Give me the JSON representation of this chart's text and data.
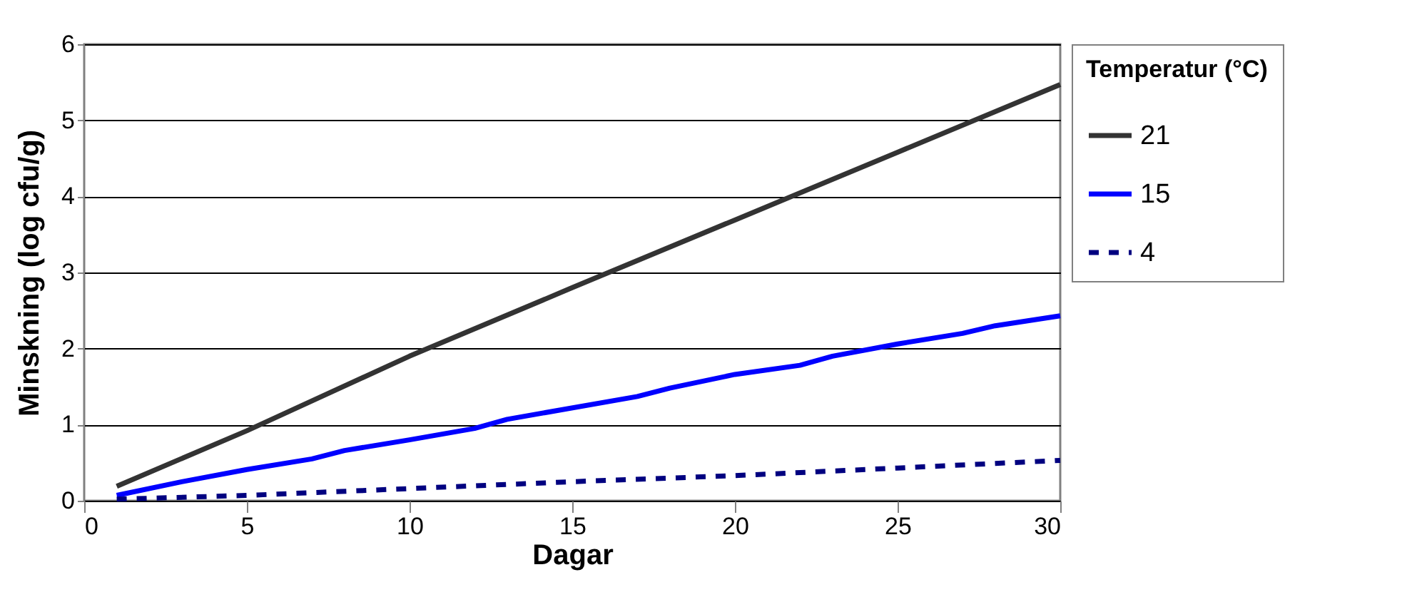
{
  "chart_data": {
    "type": "line",
    "xlabel": "Dagar",
    "ylabel": "Minskning (log cfu/g)",
    "legend_title": "Temperatur (°C)",
    "xlim": [
      0,
      30
    ],
    "xticks": [
      0,
      5,
      10,
      15,
      20,
      25,
      30
    ],
    "ylim": [
      0,
      6
    ],
    "yticks": [
      0,
      1,
      2,
      3,
      4,
      5,
      6
    ],
    "grid": "y",
    "legend": "right",
    "marker": "none",
    "series": [
      {
        "name": "21",
        "color": "#333333",
        "line_style": "solid",
        "x": [
          1,
          5,
          10,
          15,
          20,
          25,
          30
        ],
        "values": [
          0.19,
          0.92,
          1.9,
          2.8,
          3.69,
          4.58,
          5.47
        ]
      },
      {
        "name": "15",
        "color": "#0000ff",
        "line_style": "solid",
        "x": [
          1,
          3,
          5,
          7,
          8,
          10,
          12,
          13,
          17,
          18,
          20,
          22,
          23,
          25,
          27,
          28,
          30
        ],
        "values": [
          0.07,
          0.25,
          0.41,
          0.55,
          0.66,
          0.8,
          0.95,
          1.07,
          1.37,
          1.48,
          1.66,
          1.78,
          1.9,
          2.06,
          2.2,
          2.3,
          2.43
        ]
      },
      {
        "name": "4",
        "color": "#000080",
        "line_style": "dashed",
        "x": [
          1,
          5,
          10,
          15,
          20,
          25,
          30
        ],
        "values": [
          0.02,
          0.07,
          0.16,
          0.25,
          0.33,
          0.43,
          0.53
        ]
      }
    ]
  }
}
